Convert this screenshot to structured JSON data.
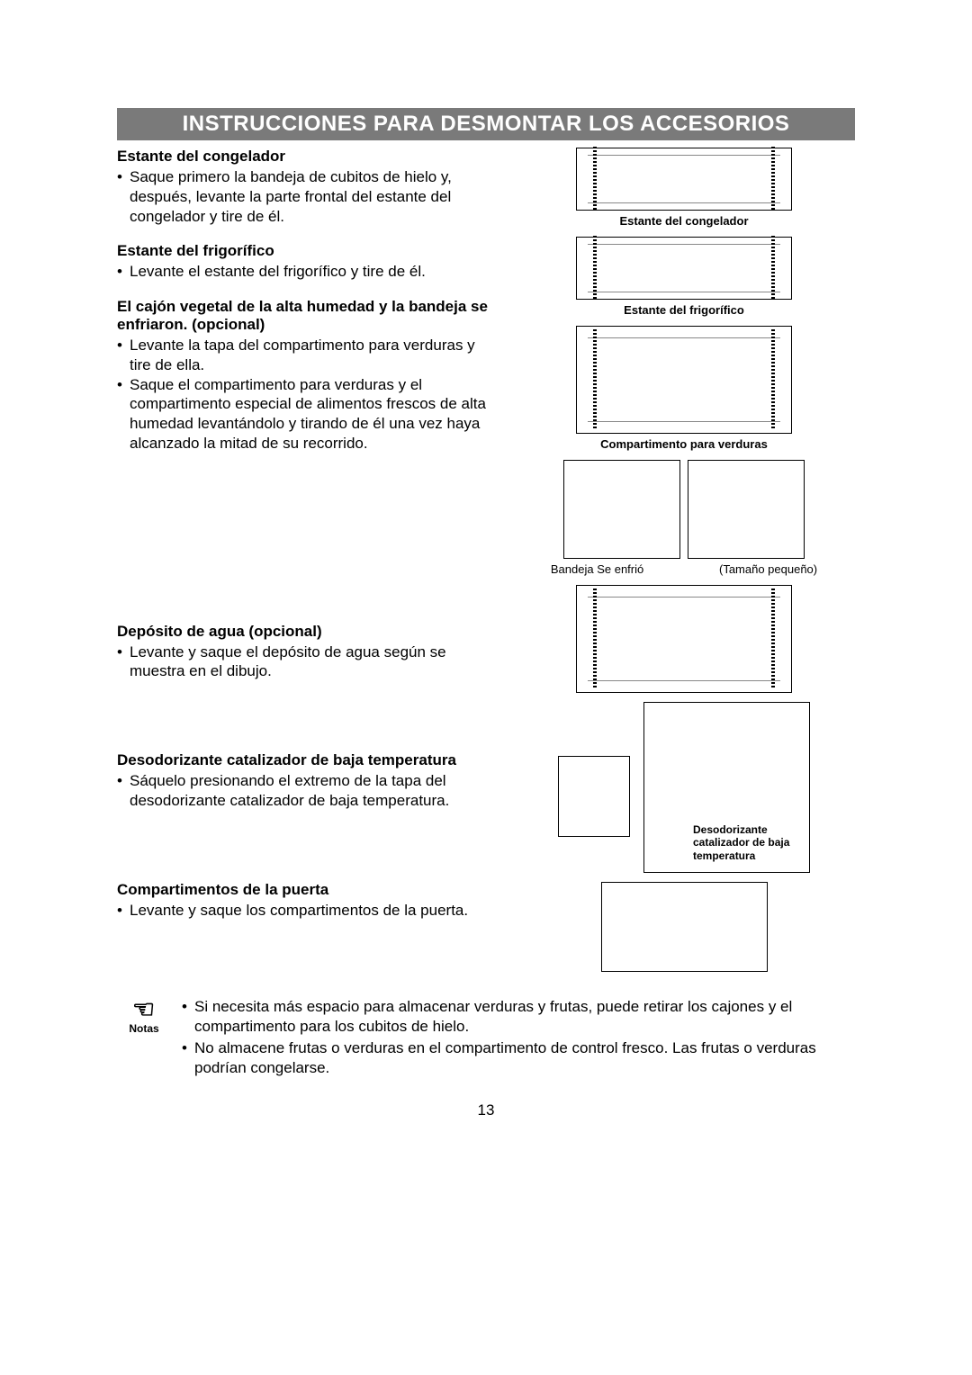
{
  "title": "INSTRUCCIONES PARA DESMONTAR LOS ACCESORIOS",
  "colors": {
    "title_bg": "#7a7a7a",
    "title_fg": "#ffffff",
    "text": "#000000",
    "page_bg": "#ffffff"
  },
  "typography": {
    "title_fontsize_pt": 18,
    "heading_fontsize_pt": 13,
    "body_fontsize_pt": 13,
    "caption_fontsize_pt": 10
  },
  "sections": [
    {
      "heading": "Estante del congelador",
      "bullets": [
        "Saque primero la bandeja de cubitos de hielo y, después, levante la parte frontal del estante del congelador y tire de él."
      ]
    },
    {
      "heading": "Estante del frigorífico",
      "bullets": [
        "Levante el estante del frigorífico y tire de él."
      ]
    },
    {
      "heading": "El cajón vegetal de la alta humedad y la bandeja se enfriaron. (opcional)",
      "bullets": [
        "Levante la tapa del compartimento para verduras y tire de ella.",
        "Saque el compartimento para verduras y el compartimento especial de alimentos frescos de alta humedad levantándolo y tirando de él una vez haya alcanzado la mitad de su recorrido."
      ]
    },
    {
      "heading": "Depósito de agua (opcional)",
      "bullets": [
        "Levante y saque el depósito de agua según se muestra en el dibujo."
      ]
    },
    {
      "heading": "Desodorizante catalizador de baja temperatura",
      "bullets": [
        "Sáquelo presionando el extremo de la tapa del desodorizante catalizador de baja temperatura."
      ]
    },
    {
      "heading": "Compartimentos de la puerta",
      "bullets": [
        "Levante y saque los compartimentos de la puerta."
      ]
    }
  ],
  "figures": {
    "freezer_shelf_caption": "Estante del congelador",
    "fridge_shelf_caption": "Estante del frigorífico",
    "veg_caption": "Compartimento para verduras",
    "tray_left": "Bandeja Se enfrió",
    "tray_right": "(Tamaño pequeño)",
    "deodor_caption": "Desodorizante catalizador de baja temperatura"
  },
  "notes": {
    "label": "Notas",
    "items": [
      "Si necesita más espacio para almacenar verduras y frutas, puede retirar los cajones y el compartimento para los cubitos de hielo.",
      "No almacene frutas o verduras en el compartimento de control fresco. Las frutas o verduras podrían congelarse."
    ]
  },
  "page_number": "13"
}
